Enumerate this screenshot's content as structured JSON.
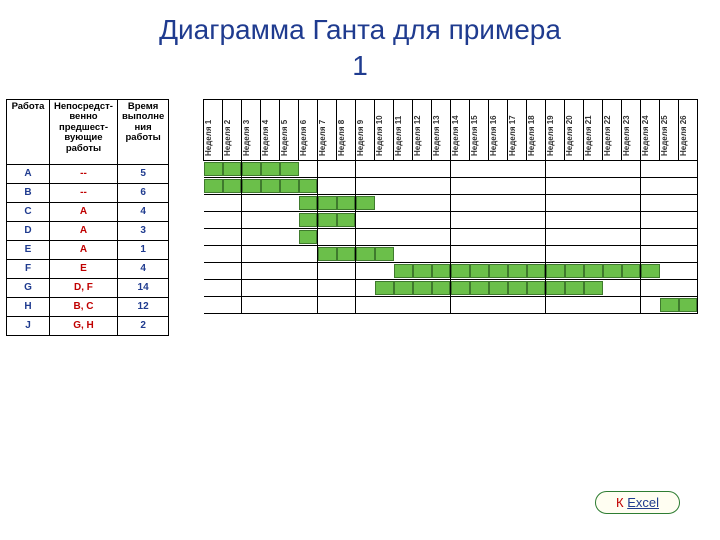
{
  "title_line1": "Диаграмма Ганта для примера",
  "title_line2": "1",
  "table": {
    "headers": [
      "Работа",
      "Непосредст-венно предшест-вующие работы",
      "Время выполне ния работы"
    ],
    "rows": [
      {
        "name": "A",
        "pred": "--",
        "dur": "5",
        "start": 1,
        "len": 5
      },
      {
        "name": "B",
        "pred": "--",
        "dur": "6",
        "start": 1,
        "len": 6
      },
      {
        "name": "C",
        "pred": "A",
        "dur": "4",
        "start": 6,
        "len": 4
      },
      {
        "name": "D",
        "pred": "A",
        "dur": "3",
        "start": 6,
        "len": 3
      },
      {
        "name": "E",
        "pred": "A",
        "dur": "1",
        "start": 6,
        "len": 1
      },
      {
        "name": "F",
        "pred": "E",
        "dur": "4",
        "start": 7,
        "len": 4
      },
      {
        "name": "G",
        "pred": "D, F",
        "dur": "14",
        "start": 11,
        "len": 14
      },
      {
        "name": "H",
        "pred": "B, C",
        "dur": "12",
        "start": 10,
        "len": 12
      },
      {
        "name": "J",
        "pred": "G, H",
        "dur": "2",
        "start": 25,
        "len": 2
      }
    ]
  },
  "gantt": {
    "weeks": 26,
    "week_prefix": "Неделя",
    "vlines_after": [
      2,
      6,
      8,
      13,
      18,
      23,
      26
    ],
    "bar_fill": "#6bbf4a",
    "bar_border": "#3f7a2d",
    "grid_color": "#000000",
    "cell_bg": "#ffffff"
  },
  "button": {
    "prefix": "К ",
    "link": "Excel"
  },
  "colors": {
    "title": "#1f3b8f",
    "task_name": "#1f3b8f",
    "task_pred": "#c00000",
    "task_dur": "#1f3b8f",
    "btn_border": "#2e7d32",
    "btn_text": "#c00000",
    "btn_link": "#1f3b8f"
  }
}
